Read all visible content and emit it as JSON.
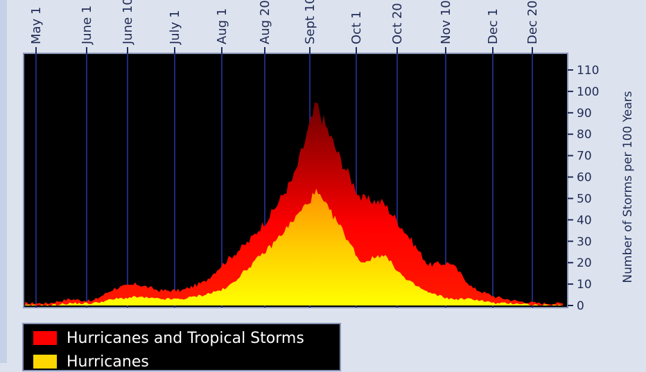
{
  "chart_data": {
    "type": "area",
    "xlabels": [
      "May 1",
      "June 1",
      "June 10",
      "July 1",
      "Aug 1",
      "Aug 20",
      "Sept 10",
      "Oct 1",
      "Oct 20",
      "Nov 10",
      "Dec 1",
      "Dec 20"
    ],
    "ylabel": "Number of Storms per 100 Years",
    "ylim": [
      0,
      115
    ],
    "yticks": [
      0,
      10,
      20,
      30,
      40,
      50,
      60,
      70,
      80,
      90,
      100,
      110
    ],
    "legend": "bottom-left",
    "x": [
      "May 1",
      "May 10",
      "May 20",
      "June 1",
      "June 10",
      "June 20",
      "July 1",
      "July 10",
      "July 20",
      "Aug 1",
      "Aug 10",
      "Aug 20",
      "Sept 1",
      "Sept 10",
      "Sept 20",
      "Oct 1",
      "Oct 10",
      "Oct 20",
      "Nov 1",
      "Nov 10",
      "Nov 20",
      "Dec 1",
      "Dec 10",
      "Dec 20",
      "Dec 31"
    ],
    "series": [
      {
        "name": "Hurricanes and Tropical Storms",
        "color": "#ff0000",
        "values": [
          1,
          1,
          3,
          2,
          8,
          10,
          7,
          7,
          11,
          21,
          30,
          43,
          60,
          94,
          70,
          50,
          48,
          34,
          19,
          20,
          8,
          4,
          2,
          1,
          1
        ]
      },
      {
        "name": "Hurricanes",
        "color": "#ffd700",
        "values": [
          0,
          0,
          1,
          1,
          3,
          4,
          3,
          3,
          5,
          8,
          18,
          28,
          40,
          53,
          38,
          20,
          24,
          12,
          6,
          3,
          3,
          1,
          1,
          0,
          0
        ]
      }
    ]
  }
}
